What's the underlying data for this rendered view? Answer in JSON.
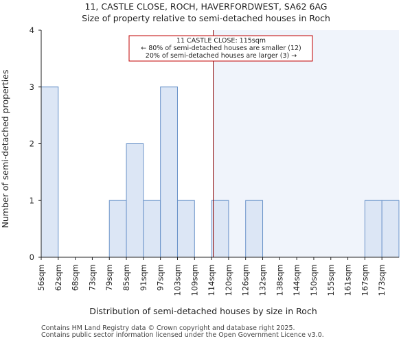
{
  "chart_data": {
    "type": "bar",
    "title": "11, CASTLE CLOSE, ROCH, HAVERFORDWEST, SA62 6AG",
    "subtitle": "Size of property relative to semi-detached houses in Roch",
    "xlabel": "Distribution of semi-detached houses by size in Roch",
    "ylabel": "Number of semi-detached properties",
    "categories": [
      "56sqm",
      "62sqm",
      "68sqm",
      "73sqm",
      "79sqm",
      "85sqm",
      "91sqm",
      "97sqm",
      "103sqm",
      "109sqm",
      "114sqm",
      "120sqm",
      "126sqm",
      "132sqm",
      "138sqm",
      "144sqm",
      "150sqm",
      "155sqm",
      "161sqm",
      "167sqm",
      "173sqm"
    ],
    "values": [
      3,
      0,
      0,
      0,
      1,
      2,
      1,
      3,
      1,
      0,
      1,
      0,
      1,
      0,
      0,
      0,
      0,
      0,
      0,
      1,
      1
    ],
    "ylim": [
      0,
      4
    ],
    "yticks": [
      "0",
      "1",
      "2",
      "3",
      "4"
    ],
    "property_marker": {
      "value_sqm": 115,
      "bin_index": 10,
      "bin_fraction": 0.1
    },
    "annotation": [
      "11 CASTLE CLOSE: 115sqm",
      "← 80% of semi-detached houses are smaller (12)",
      "20% of semi-detached houses are larger (3) →"
    ],
    "colors": {
      "bar_fill": "#dce6f5",
      "bar_edge": "#6a93c9",
      "marker_line": "#8b0000",
      "annotation_border": "#c00000",
      "highlight_bg": "#f0f4fb"
    }
  },
  "footer": {
    "line1": "Contains HM Land Registry data © Crown copyright and database right 2025.",
    "line2": "Contains public sector information licensed under the Open Government Licence v3.0."
  }
}
